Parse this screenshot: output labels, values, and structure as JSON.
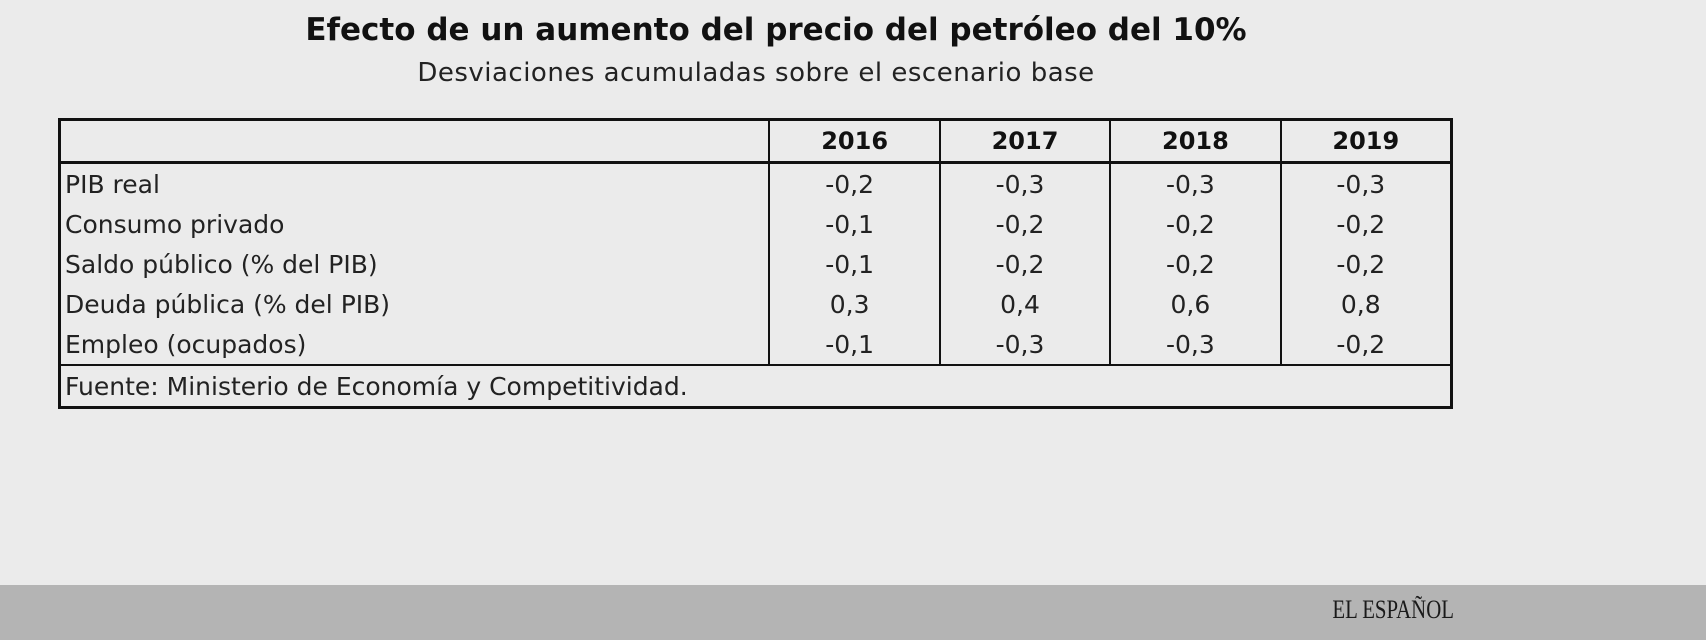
{
  "header": {
    "title": "Efecto de un aumento del precio del petróleo del 10%",
    "subtitle": "Desviaciones acumuladas sobre el escenario base"
  },
  "table": {
    "columns": [
      "",
      "2016",
      "2017",
      "2018",
      "2019"
    ],
    "rows": [
      {
        "label": "PIB real",
        "values": [
          "-0,2",
          "-0,3",
          "-0,3",
          "-0,3"
        ]
      },
      {
        "label": "Consumo privado",
        "values": [
          "-0,1",
          "-0,2",
          "-0,2",
          "-0,2"
        ]
      },
      {
        "label": "Saldo público (% del PIB)",
        "values": [
          "-0,1",
          "-0,2",
          "-0,2",
          "-0,2"
        ]
      },
      {
        "label": "Deuda pública (% del PIB)",
        "values": [
          "0,3",
          "0,4",
          "0,6",
          "0,8"
        ]
      },
      {
        "label": "Empleo (ocupados)",
        "values": [
          "-0,1",
          "-0,3",
          "-0,3",
          "-0,2"
        ]
      }
    ],
    "source": "Fuente: Ministerio de Economía y Competitividad."
  },
  "footer": {
    "logo": "EL ESPAÑOL"
  }
}
